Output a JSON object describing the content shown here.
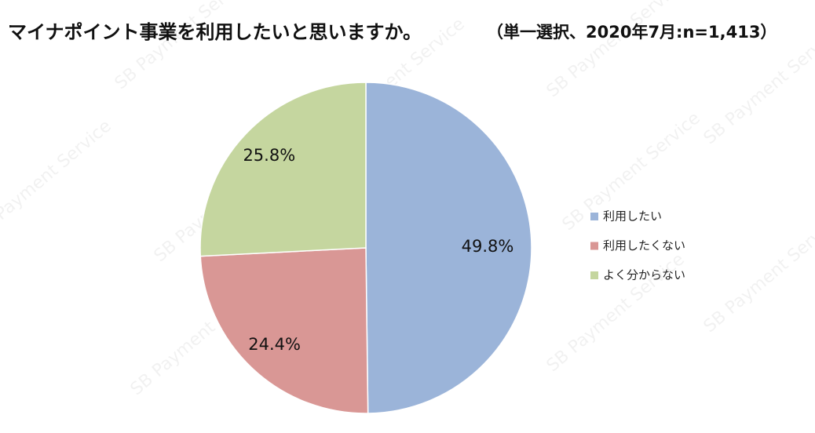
{
  "chart_data": {
    "type": "pie",
    "title": "マイナポイント事業を利用したいと思いますか。",
    "subtitle": "（単一選択、2020年7月:n=1,413）",
    "watermark": "SB Payment Service",
    "categories": [
      "利用したい",
      "利用したくない",
      "よく分からない"
    ],
    "values": [
      49.8,
      24.4,
      25.8
    ],
    "value_labels": [
      "49.8%",
      "24.4%",
      "25.8%"
    ],
    "colors": [
      "#9bb4d9",
      "#d99795",
      "#c5d69f"
    ],
    "legend": "right"
  }
}
